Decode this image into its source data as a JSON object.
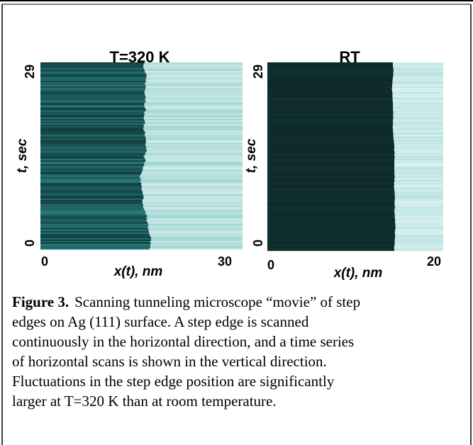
{
  "figure": {
    "panels": [
      {
        "title": "T=320 K",
        "ylabel": "t, sec",
        "yticks": [
          "29",
          "0"
        ],
        "xlabel": "x(t), nm",
        "xticks": [
          "0",
          "30"
        ]
      },
      {
        "title": "RT",
        "ylabel": "t, sec",
        "yticks": [
          "29",
          "0"
        ],
        "xlabel": "x(t), nm",
        "xticks": [
          "0",
          "20"
        ]
      }
    ],
    "caption": {
      "label": "Figure 3.",
      "lines": [
        "Scanning tunneling microscope “movie” of step",
        "edges on Ag (111) surface.  A step edge is scanned",
        "continuously in the horizontal direction, and a time series",
        "of horizontal scans is shown in the vertical direction.",
        "Fluctuations in the step edge position are significantly",
        "larger at T=320 K than at room temperature."
      ]
    }
  }
}
